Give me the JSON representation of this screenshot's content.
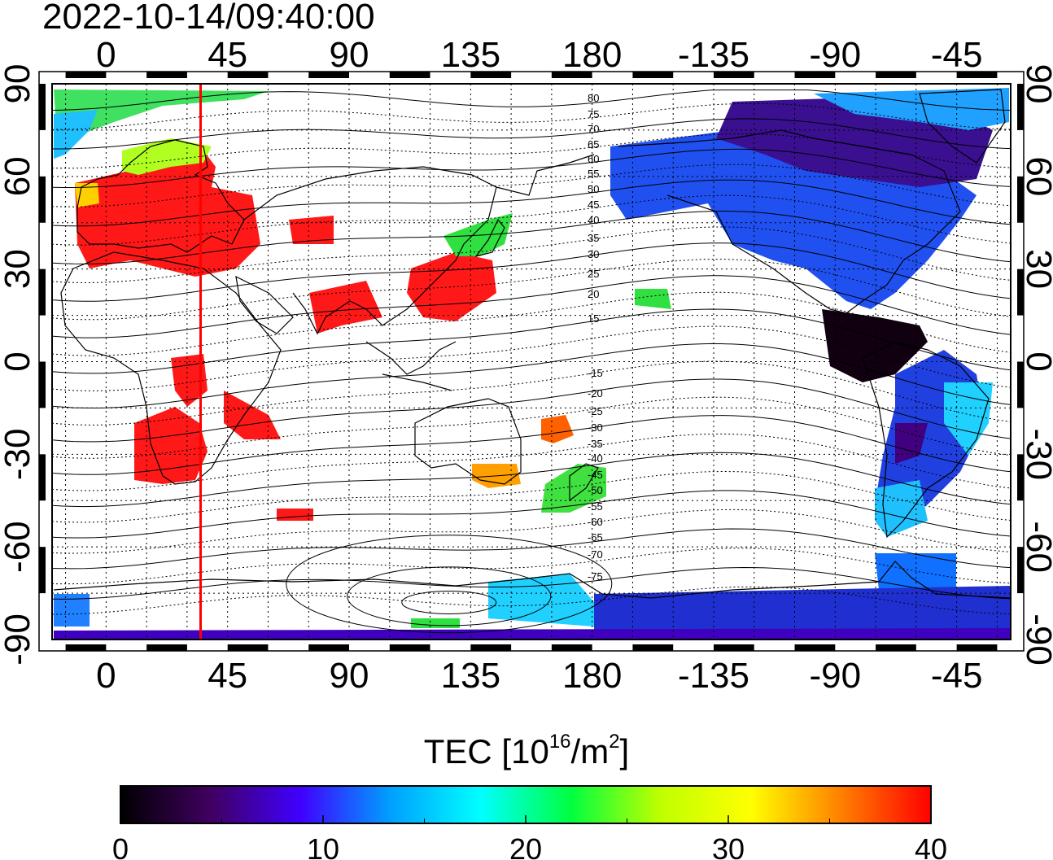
{
  "timestamp": "2022-10-14/09:40:00",
  "map": {
    "lon_ticks": [
      0,
      45,
      90,
      135,
      180,
      -135,
      -90,
      -45
    ],
    "lat_ticks": [
      90,
      60,
      30,
      0,
      -30,
      -60,
      -90
    ],
    "lon_range": [
      -20,
      335
    ],
    "lat_range": [
      -90,
      90
    ],
    "marker_longitude": 35,
    "marker_color": "#ff0000",
    "projection": "equirectangular",
    "grid": "dotted every 15 degrees",
    "geomagnetic_contour_labels_north": [
      "80",
      "75",
      "70",
      "65",
      "60",
      "55",
      "50",
      "45",
      "40",
      "35",
      "30",
      "25",
      "20",
      "15"
    ],
    "geomagnetic_contour_labels_south": [
      "-15",
      "-20",
      "-25",
      "-30",
      "-35",
      "-40",
      "-45",
      "-50",
      "-55",
      "-60",
      "-65",
      "-70",
      "-75"
    ]
  },
  "colorbar": {
    "title_prefix": "TEC  [10",
    "title_exp": "16",
    "title_mid": "/m",
    "title_exp2": "2",
    "title_suffix": "]",
    "min": 0,
    "max": 40,
    "tick_labels": [
      "0",
      "10",
      "20",
      "30",
      "40"
    ],
    "colors": [
      "#000000",
      "#400060",
      "#4000ff",
      "#00a0ff",
      "#00ffff",
      "#00ff40",
      "#c0ff00",
      "#ffff00",
      "#ff8000",
      "#ff0000"
    ]
  }
}
